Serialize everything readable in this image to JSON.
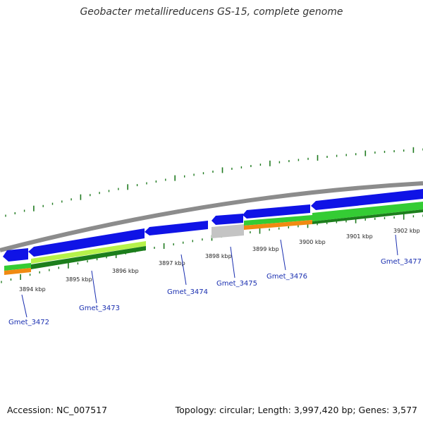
{
  "title": "Geobacter metallireducens GS-15, complete genome",
  "footer": {
    "accession": "Accession: NC_007517",
    "summary": "Topology: circular; Length: 3,997,420 bp; Genes: 3,577"
  },
  "colors": {
    "backbone": "#8c8c8c",
    "cds": "#0f13e6",
    "cds_gray": "#c4c4c4",
    "ticks": "#1f7a1f",
    "green_bright": "#34cc34",
    "green_dark": "#1c7e1c",
    "lime": "#b6f24a",
    "orange": "#f08a12",
    "gene_label": "#1a2fb0"
  },
  "kbp_ticks": [
    {
      "label": "3894 kbp"
    },
    {
      "label": "3895 kbp"
    },
    {
      "label": "3896 kbp"
    },
    {
      "label": "3897 kbp"
    },
    {
      "label": "3898 kbp"
    },
    {
      "label": "3899 kbp"
    },
    {
      "label": "3900 kbp"
    },
    {
      "label": "3901 kbp"
    },
    {
      "label": "3902 kbp"
    }
  ],
  "gene_labels": [
    {
      "label": "Gmet_3472"
    },
    {
      "label": "Gmet_3473"
    },
    {
      "label": "Gmet_3474"
    },
    {
      "label": "Gmet_3475"
    },
    {
      "label": "Gmet_3476"
    },
    {
      "label": "Gmet_3477"
    }
  ]
}
